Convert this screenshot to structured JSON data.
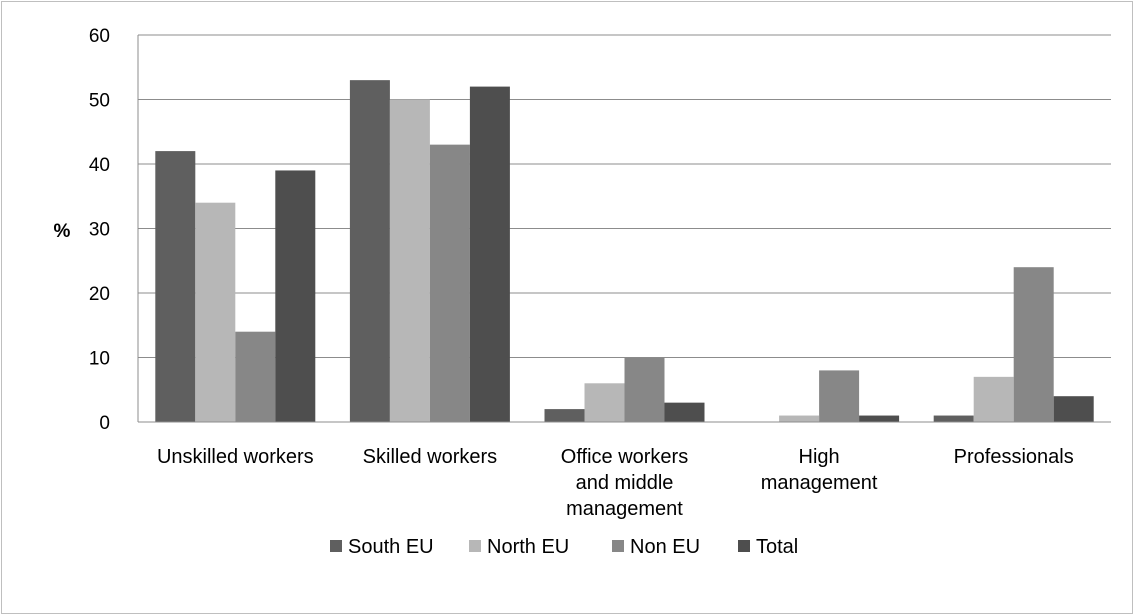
{
  "chart_data": {
    "type": "bar",
    "title": "",
    "xlabel": "",
    "ylabel": "%",
    "ylim": [
      0,
      60
    ],
    "yticks": [
      0,
      10,
      20,
      30,
      40,
      50,
      60
    ],
    "grid": true,
    "legend_position": "bottom",
    "categories": [
      [
        "Unskilled workers"
      ],
      [
        "Skilled workers"
      ],
      [
        "Office workers",
        "and middle",
        "management"
      ],
      [
        "High",
        "management"
      ],
      [
        "Professionals"
      ]
    ],
    "series": [
      {
        "name": "South EU",
        "color": "#5f5f5f",
        "values": [
          42,
          53,
          2,
          0,
          1
        ]
      },
      {
        "name": "North EU",
        "color": "#b7b7b7",
        "values": [
          34,
          50,
          6,
          1,
          7
        ]
      },
      {
        "name": "Non EU",
        "color": "#878787",
        "values": [
          14,
          43,
          10,
          8,
          24
        ]
      },
      {
        "name": "Total",
        "color": "#4e4e4e",
        "values": [
          39,
          52,
          3,
          1,
          4
        ]
      }
    ]
  }
}
